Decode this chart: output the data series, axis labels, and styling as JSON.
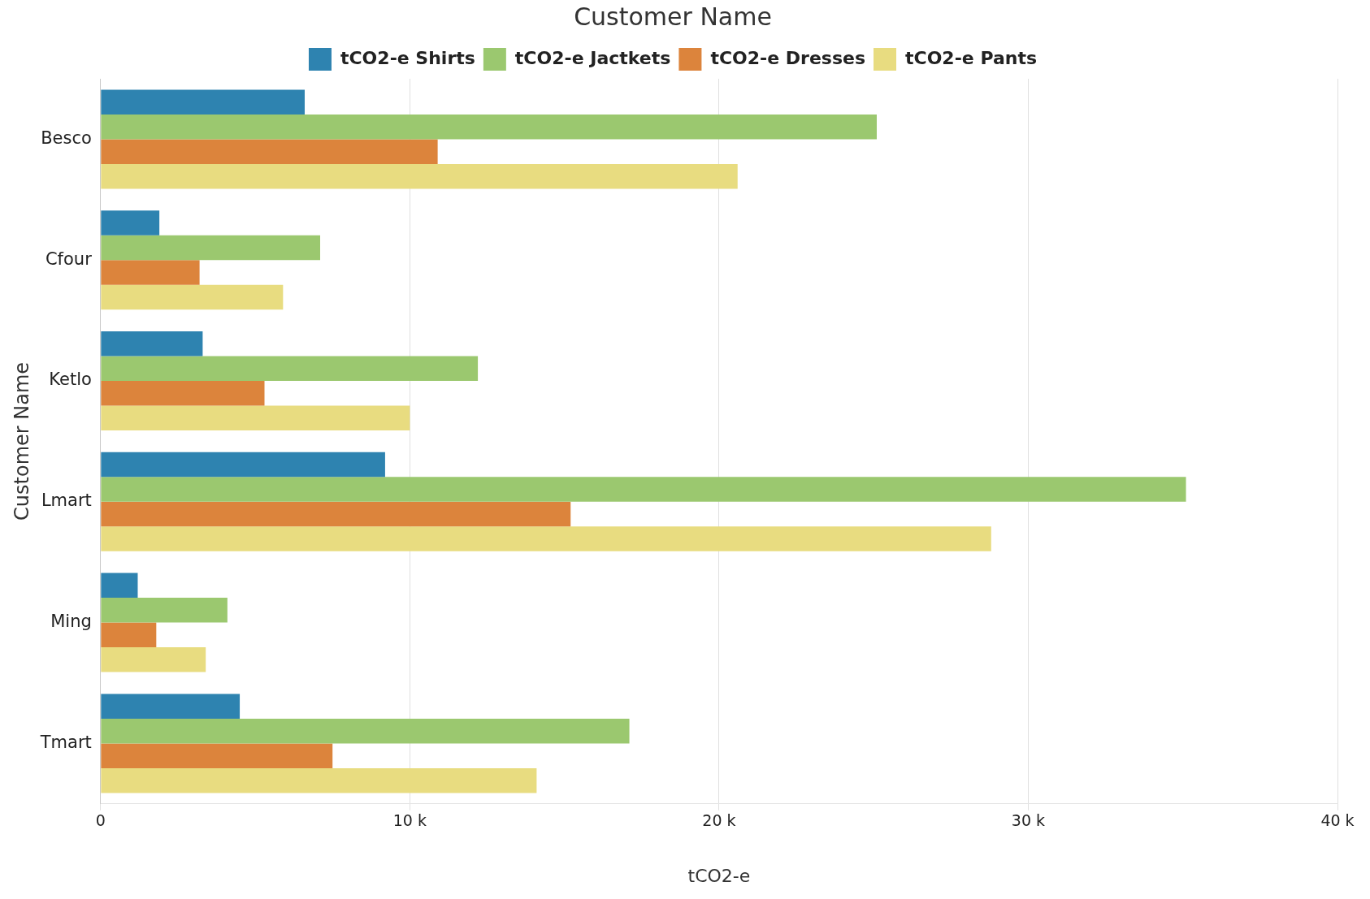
{
  "chart_data": {
    "type": "bar",
    "orientation": "horizontal",
    "title": "Customer Name",
    "xlabel": "tCO2-e",
    "ylabel": "Customer Name",
    "categories": [
      "Besco",
      "Cfour",
      "Ketlo",
      "Lmart",
      "Ming",
      "Tmart"
    ],
    "series": [
      {
        "name": "tCO2-e Shirts",
        "color": "#2e83b0",
        "values": [
          6600,
          1900,
          3300,
          9200,
          1200,
          4500
        ]
      },
      {
        "name": "tCO2-e Jactkets",
        "color": "#9bc86f",
        "values": [
          25100,
          7100,
          12200,
          35100,
          4100,
          17100
        ]
      },
      {
        "name": "tCO2-e Dresses",
        "color": "#dc843c",
        "values": [
          10900,
          3200,
          5300,
          15200,
          1800,
          7500
        ]
      },
      {
        "name": "tCO2-e Pants",
        "color": "#e8dc80",
        "values": [
          20600,
          5900,
          10000,
          28800,
          3400,
          14100
        ]
      }
    ],
    "xlim": [
      0,
      40000
    ],
    "xticks": [
      0,
      {
        "value": 10000,
        "label": "10 k"
      },
      {
        "value": 20000,
        "label": "20 k"
      },
      {
        "value": 30000,
        "label": "30 k"
      },
      {
        "value": 40000,
        "label": "40 k"
      }
    ],
    "grid": "x",
    "legend": "top"
  }
}
